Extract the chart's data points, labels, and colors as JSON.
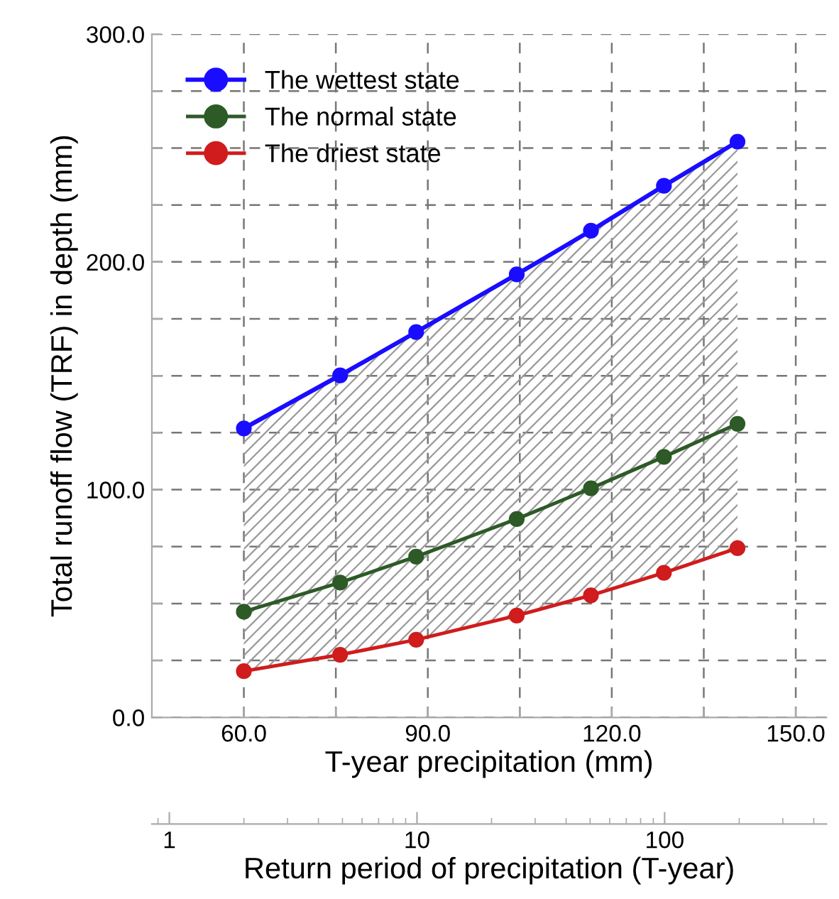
{
  "chart_data": {
    "type": "line",
    "xlabel": "T-year precipitation (mm)",
    "ylabel": "Total runoff flow (TRF) in depth (mm)",
    "x2label": "Return period of precipitation (T-year)",
    "x": [
      60,
      75.7,
      88.1,
      104.5,
      116.6,
      128.5,
      140.5
    ],
    "series": [
      {
        "name": "The wettest state",
        "color": "#1a0dff",
        "values": [
          126.9,
          150.2,
          169.2,
          194.5,
          213.7,
          233.4,
          252.8
        ],
        "lower": [
          20.3,
          27.5,
          34.1,
          44.7,
          53.6,
          63.5,
          74.3
        ],
        "upper": [
          126.9,
          150.2,
          169.2,
          194.5,
          213.7,
          233.4,
          252.8
        ]
      },
      {
        "name": "The normal state",
        "color": "#2d5a27",
        "values": [
          46.4,
          59.2,
          70.6,
          87.1,
          100.6,
          114.4,
          128.9
        ]
      },
      {
        "name": "The driest state",
        "color": "#d01c1c",
        "values": [
          20.3,
          27.5,
          34.1,
          44.7,
          53.6,
          63.5,
          74.3
        ]
      }
    ],
    "xlim": [
      45,
      155
    ],
    "xticks": [
      {
        "value": 60,
        "label": "60.0"
      },
      {
        "value": 75,
        "label": null
      },
      {
        "value": 90,
        "label": "90.0"
      },
      {
        "value": 105,
        "label": null
      },
      {
        "value": 120,
        "label": "120.0"
      },
      {
        "value": 135,
        "label": null
      },
      {
        "value": 150,
        "label": "150.0"
      }
    ],
    "ylim": [
      0,
      300
    ],
    "yticks": [
      {
        "value": 0,
        "label": "0.0"
      },
      {
        "value": 25,
        "label": null
      },
      {
        "value": 50,
        "label": null
      },
      {
        "value": 75,
        "label": null
      },
      {
        "value": 100,
        "label": "100.0"
      },
      {
        "value": 125,
        "label": null
      },
      {
        "value": 150,
        "label": null
      },
      {
        "value": 175,
        "label": null
      },
      {
        "value": 200,
        "label": "200.0"
      },
      {
        "value": 225,
        "label": null
      },
      {
        "value": 250,
        "label": null
      },
      {
        "value": 275,
        "label": null
      },
      {
        "value": 300,
        "label": "300.0"
      }
    ],
    "x2lim": [
      0.85,
      450
    ],
    "x2ticks": [
      1,
      10,
      100
    ],
    "log": "x2",
    "grid": true,
    "legend": "top left",
    "marker": "circle",
    "line_style": "solid"
  }
}
